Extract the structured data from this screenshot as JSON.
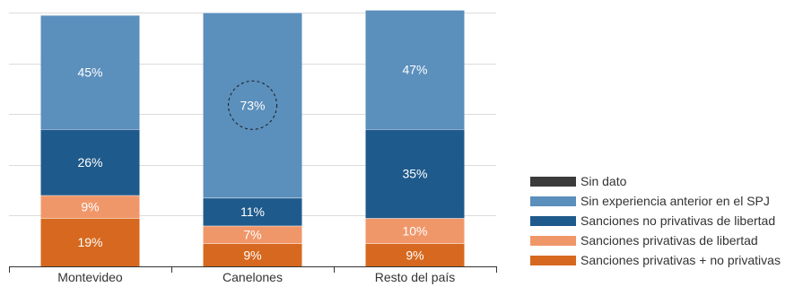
{
  "chart_data": {
    "type": "bar",
    "stacked": true,
    "percent_stacked": true,
    "categories": [
      "Montevideo",
      "Canelones",
      "Resto del país"
    ],
    "series": [
      {
        "name": "Sanciones privativas + no privativas",
        "color": "#d6691f",
        "values": [
          19,
          9,
          9
        ],
        "labels": [
          "19%",
          "9%",
          "9%"
        ]
      },
      {
        "name": "Sanciones privativas de libertad",
        "color": "#f0976a",
        "values": [
          9,
          7,
          10
        ],
        "labels": [
          "9%",
          "7%",
          "10%"
        ]
      },
      {
        "name": "Sanciones no privativas de libertad",
        "color": "#1f5a8c",
        "values": [
          26,
          11,
          35
        ],
        "labels": [
          "26%",
          "11%",
          "35%"
        ]
      },
      {
        "name": "Sin experiencia anterior en el SPJ",
        "color": "#5b8fbc",
        "values": [
          45,
          73,
          47
        ],
        "labels": [
          "45%",
          "73%",
          "47%"
        ]
      },
      {
        "name": "Sin dato",
        "color": "#3b3b3b",
        "values": [
          0,
          0,
          0
        ],
        "labels": [
          "",
          "",
          ""
        ]
      }
    ],
    "highlight": {
      "category_index": 1,
      "series_index": 3,
      "style": "dashed-circle"
    },
    "ylim": [
      0,
      100
    ],
    "grid": true,
    "legend_position": "right",
    "legend_order": [
      "Sin dato",
      "Sin experiencia anterior en el SPJ",
      "Sanciones no privativas de libertad",
      "Sanciones privativas de libertad",
      "Sanciones privativas + no privativas"
    ]
  }
}
